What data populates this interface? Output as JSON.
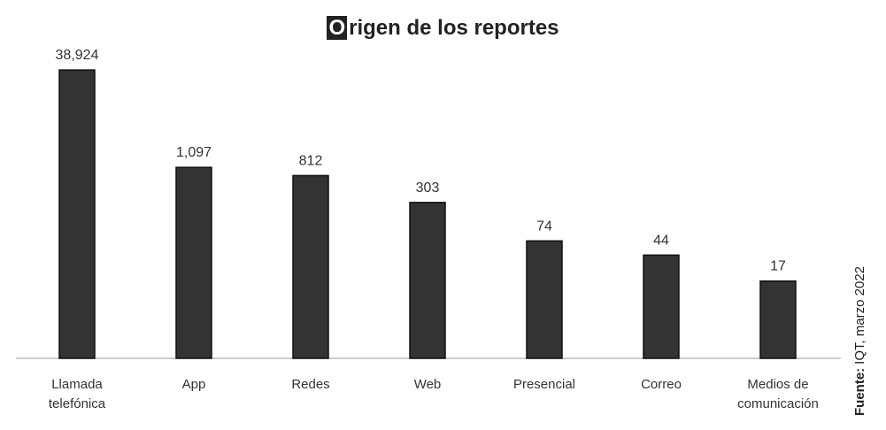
{
  "chart_data": {
    "type": "bar",
    "title": "Origen de los reportes",
    "categories": [
      "Llamada telefónica",
      "App",
      "Redes",
      "Web",
      "Presencial",
      "Correo",
      "Medios de comunicación"
    ],
    "values": [
      38924,
      1097,
      812,
      303,
      74,
      44,
      17
    ],
    "value_labels": [
      "38,924",
      "1,097",
      "812",
      "303",
      "74",
      "44",
      "17"
    ],
    "color": "#333333",
    "log_scale": true,
    "ylim": [
      1,
      100000
    ],
    "grid": false,
    "source_label": "Fuente:",
    "source": "IQT, marzo 2022"
  }
}
